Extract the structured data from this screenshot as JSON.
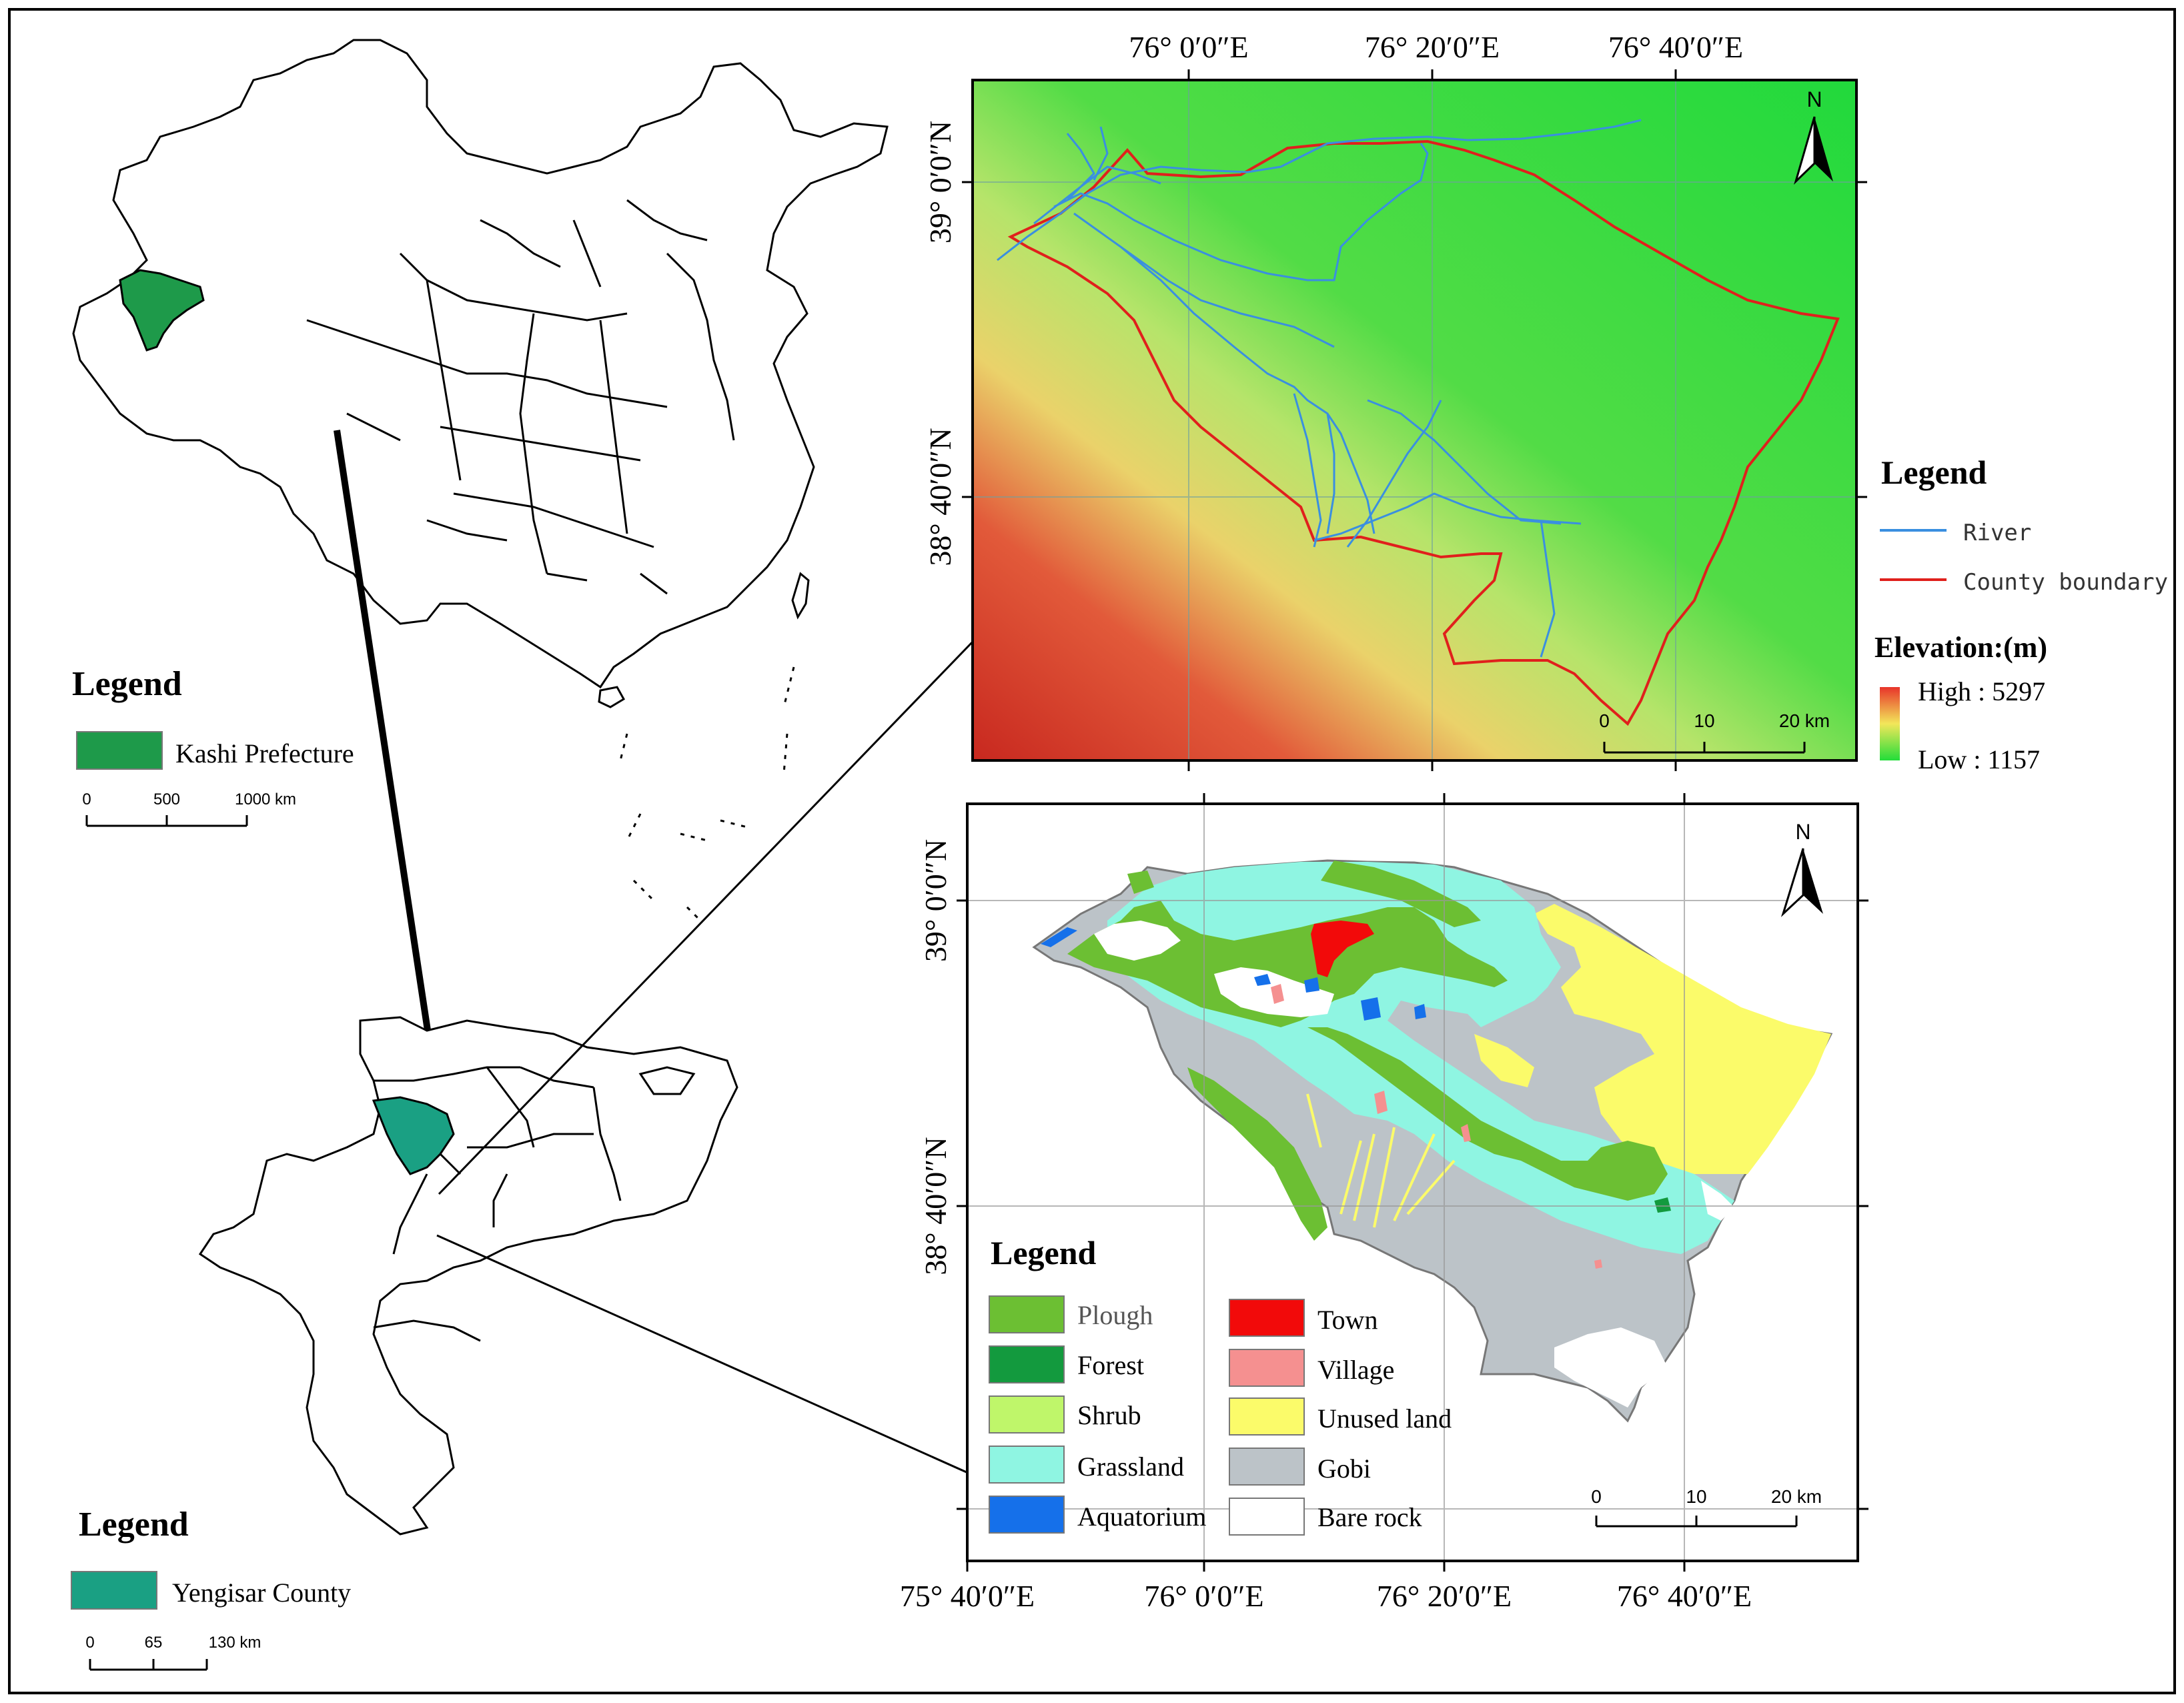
{
  "colors": {
    "kashi": "#1e9a4a",
    "yengisar": "#1aa083",
    "river": "#3a8fe0",
    "boundary": "#e0201c",
    "elev_high": "#e8342a",
    "elev_mid": "#f2e75a",
    "elev_low": "#22dd3a",
    "plough": "#6cbf33",
    "forest": "#139a3e",
    "shrub": "#bff66a",
    "grassland": "#8ff5e2",
    "aquatorium": "#1570ea",
    "town": "#f20a0a",
    "village": "#f59090",
    "unused": "#fbfb6a",
    "gobi": "#bcc3c8",
    "bare_rock": "#ffffff"
  },
  "china_map": {
    "legend_title": "Legend",
    "legend_item": "Kashi Prefecture",
    "scale": {
      "ticks": [
        "0",
        "500",
        "1000 km"
      ]
    }
  },
  "kashi_map": {
    "legend_title": "Legend",
    "legend_item": "Yengisar County",
    "scale": {
      "ticks": [
        "0",
        "65",
        "130 km"
      ]
    }
  },
  "dem_map": {
    "north": "N",
    "top_ticks": [
      "76° 0′0″E",
      "76° 20′0″E",
      "76° 40′0″E"
    ],
    "left_ticks": [
      "39° 0′0″N",
      "38° 40′0″N"
    ],
    "scale": {
      "ticks": [
        "0",
        "10",
        "20 km"
      ]
    },
    "legend_title": "Legend",
    "legend_items": [
      "River",
      "County boundary"
    ],
    "elevation_title": "Elevation:(m)",
    "elevation_high": "High : 5297",
    "elevation_low": "Low : 1157"
  },
  "landuse_map": {
    "north": "N",
    "bottom_ticks": [
      "75° 40′0″E",
      "76° 0′0″E",
      "76° 20′0″E",
      "76° 40′0″E"
    ],
    "left_ticks": [
      "39° 0′0″N",
      "38° 40′0″N"
    ],
    "scale": {
      "ticks": [
        "0",
        "10",
        "20 km"
      ]
    },
    "legend_title": "Legend",
    "legend_left": [
      "Plough",
      "Forest",
      "Shrub",
      "Grassland",
      "Aquatorium"
    ],
    "legend_right": [
      "Town",
      "Village",
      "Unused land",
      "Gobi",
      "Bare rock"
    ]
  }
}
